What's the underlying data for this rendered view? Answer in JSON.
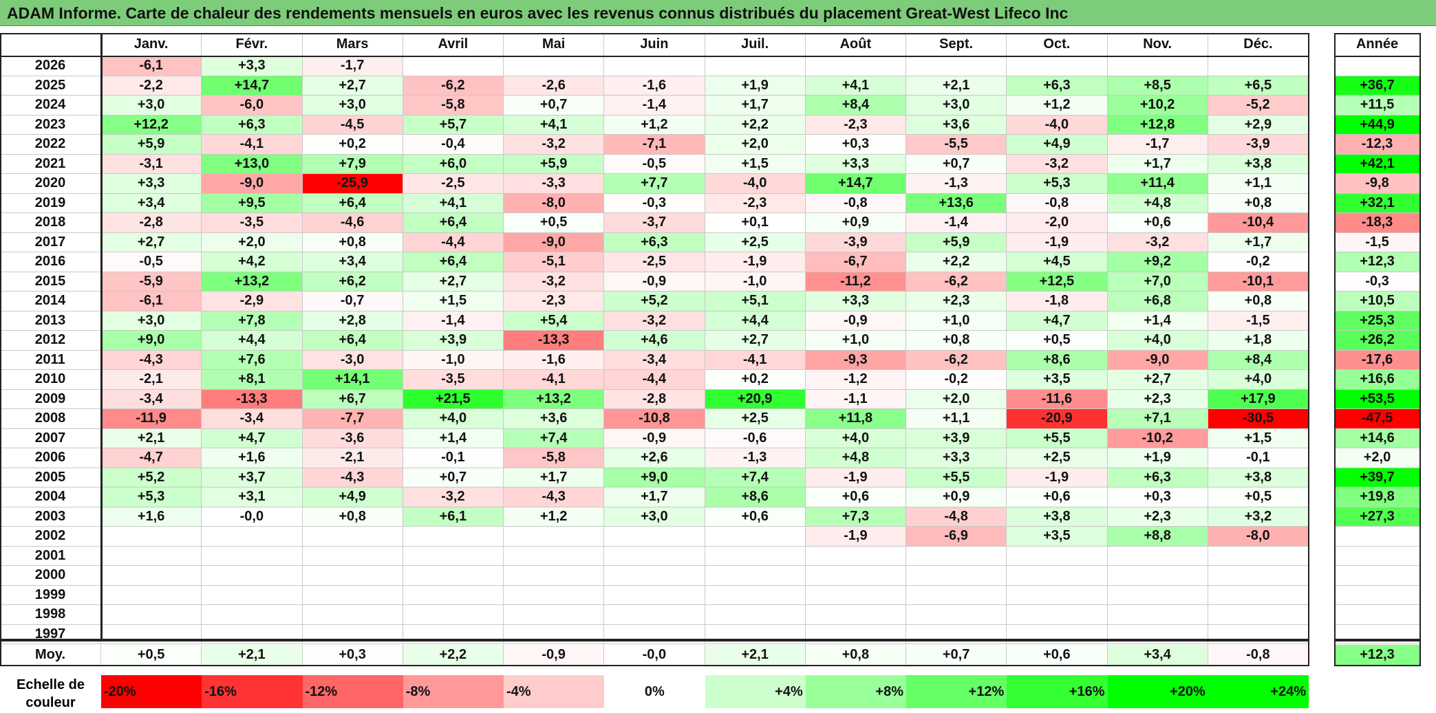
{
  "title": "ADAM Informe. Carte de chaleur des rendements mensuels en euros avec les revenus connus distribués du placement Great-West Lifeco Inc",
  "chart_data": {
    "type": "heatmap",
    "title": "ADAM Informe. Carte de chaleur des rendements mensuels en euros avec les revenus connus distribués du placement Great-West Lifeco Inc",
    "months": [
      "Janv.",
      "Févr.",
      "Mars",
      "Avril",
      "Mai",
      "Juin",
      "Juil.",
      "Août",
      "Sept.",
      "Oct.",
      "Nov.",
      "Déc."
    ],
    "year_header": "Année",
    "rows": [
      {
        "year": "2026",
        "values": [
          "-6,1",
          "+3,3",
          "-1,7",
          "",
          "",
          "",
          "",
          "",
          "",
          "",
          "",
          ""
        ],
        "annual": ""
      },
      {
        "year": "2025",
        "values": [
          "-2,2",
          "+14,7",
          "+2,7",
          "-6,2",
          "-2,6",
          "-1,6",
          "+1,9",
          "+4,1",
          "+2,1",
          "+6,3",
          "+8,5",
          "+6,5"
        ],
        "annual": "+36,7"
      },
      {
        "year": "2024",
        "values": [
          "+3,0",
          "-6,0",
          "+3,0",
          "-5,8",
          "+0,7",
          "-1,4",
          "+1,7",
          "+8,4",
          "+3,0",
          "+1,2",
          "+10,2",
          "-5,2"
        ],
        "annual": "+11,5"
      },
      {
        "year": "2023",
        "values": [
          "+12,2",
          "+6,3",
          "-4,5",
          "+5,7",
          "+4,1",
          "+1,2",
          "+2,2",
          "-2,3",
          "+3,6",
          "-4,0",
          "+12,8",
          "+2,9"
        ],
        "annual": "+44,9"
      },
      {
        "year": "2022",
        "values": [
          "+5,9",
          "-4,1",
          "+0,2",
          "-0,4",
          "-3,2",
          "-7,1",
          "+2,0",
          "+0,3",
          "-5,5",
          "+4,9",
          "-1,7",
          "-3,9"
        ],
        "annual": "-12,3"
      },
      {
        "year": "2021",
        "values": [
          "-3,1",
          "+13,0",
          "+7,9",
          "+6,0",
          "+5,9",
          "-0,5",
          "+1,5",
          "+3,3",
          "+0,7",
          "-3,2",
          "+1,7",
          "+3,8"
        ],
        "annual": "+42,1"
      },
      {
        "year": "2020",
        "values": [
          "+3,3",
          "-9,0",
          "-25,9",
          "-2,5",
          "-3,3",
          "+7,7",
          "-4,0",
          "+14,7",
          "-1,3",
          "+5,3",
          "+11,4",
          "+1,1"
        ],
        "annual": "-9,8"
      },
      {
        "year": "2019",
        "values": [
          "+3,4",
          "+9,5",
          "+6,4",
          "+4,1",
          "-8,0",
          "-0,3",
          "-2,3",
          "-0,8",
          "+13,6",
          "-0,8",
          "+4,8",
          "+0,8"
        ],
        "annual": "+32,1"
      },
      {
        "year": "2018",
        "values": [
          "-2,8",
          "-3,5",
          "-4,6",
          "+6,4",
          "+0,5",
          "-3,7",
          "+0,1",
          "+0,9",
          "-1,4",
          "-2,0",
          "+0,6",
          "-10,4"
        ],
        "annual": "-18,3"
      },
      {
        "year": "2017",
        "values": [
          "+2,7",
          "+2,0",
          "+0,8",
          "-4,4",
          "-9,0",
          "+6,3",
          "+2,5",
          "-3,9",
          "+5,9",
          "-1,9",
          "-3,2",
          "+1,7"
        ],
        "annual": "-1,5"
      },
      {
        "year": "2016",
        "values": [
          "-0,5",
          "+4,2",
          "+3,4",
          "+6,4",
          "-5,1",
          "-2,5",
          "-1,9",
          "-6,7",
          "+2,2",
          "+4,5",
          "+9,2",
          "-0,2"
        ],
        "annual": "+12,3"
      },
      {
        "year": "2015",
        "values": [
          "-5,9",
          "+13,2",
          "+6,2",
          "+2,7",
          "-3,2",
          "-0,9",
          "-1,0",
          "-11,2",
          "-6,2",
          "+12,5",
          "+7,0",
          "-10,1"
        ],
        "annual": "-0,3"
      },
      {
        "year": "2014",
        "values": [
          "-6,1",
          "-2,9",
          "-0,7",
          "+1,5",
          "-2,3",
          "+5,2",
          "+5,1",
          "+3,3",
          "+2,3",
          "-1,8",
          "+6,8",
          "+0,8"
        ],
        "annual": "+10,5"
      },
      {
        "year": "2013",
        "values": [
          "+3,0",
          "+7,8",
          "+2,8",
          "-1,4",
          "+5,4",
          "-3,2",
          "+4,4",
          "-0,9",
          "+1,0",
          "+4,7",
          "+1,4",
          "-1,5"
        ],
        "annual": "+25,3"
      },
      {
        "year": "2012",
        "values": [
          "+9,0",
          "+4,4",
          "+6,4",
          "+3,9",
          "-13,3",
          "+4,6",
          "+2,7",
          "+1,0",
          "+0,8",
          "+0,5",
          "+4,0",
          "+1,8"
        ],
        "annual": "+26,2"
      },
      {
        "year": "2011",
        "values": [
          "-4,3",
          "+7,6",
          "-3,0",
          "-1,0",
          "-1,6",
          "-3,4",
          "-4,1",
          "-9,3",
          "-6,2",
          "+8,6",
          "-9,0",
          "+8,4"
        ],
        "annual": "-17,6"
      },
      {
        "year": "2010",
        "values": [
          "-2,1",
          "+8,1",
          "+14,1",
          "-3,5",
          "-4,1",
          "-4,4",
          "+0,2",
          "-1,2",
          "-0,2",
          "+3,5",
          "+2,7",
          "+4,0"
        ],
        "annual": "+16,6"
      },
      {
        "year": "2009",
        "values": [
          "-3,4",
          "-13,3",
          "+6,7",
          "+21,5",
          "+13,2",
          "-2,8",
          "+20,9",
          "-1,1",
          "+2,0",
          "-11,6",
          "+2,3",
          "+17,9"
        ],
        "annual": "+53,5"
      },
      {
        "year": "2008",
        "values": [
          "-11,9",
          "-3,4",
          "-7,7",
          "+4,0",
          "+3,6",
          "-10,8",
          "+2,5",
          "+11,8",
          "+1,1",
          "-20,9",
          "+7,1",
          "-30,5"
        ],
        "annual": "-47,5"
      },
      {
        "year": "2007",
        "values": [
          "+2,1",
          "+4,7",
          "-3,6",
          "+1,4",
          "+7,4",
          "-0,9",
          "-0,6",
          "+4,0",
          "+3,9",
          "+5,5",
          "-10,2",
          "+1,5"
        ],
        "annual": "+14,6"
      },
      {
        "year": "2006",
        "values": [
          "-4,7",
          "+1,6",
          "-2,1",
          "-0,1",
          "-5,8",
          "+2,6",
          "-1,3",
          "+4,8",
          "+3,3",
          "+2,5",
          "+1,9",
          "-0,1"
        ],
        "annual": "+2,0"
      },
      {
        "year": "2005",
        "values": [
          "+5,2",
          "+3,7",
          "-4,3",
          "+0,7",
          "+1,7",
          "+9,0",
          "+7,4",
          "-1,9",
          "+5,5",
          "-1,9",
          "+6,3",
          "+3,8"
        ],
        "annual": "+39,7"
      },
      {
        "year": "2004",
        "values": [
          "+5,3",
          "+3,1",
          "+4,9",
          "-3,2",
          "-4,3",
          "+1,7",
          "+8,6",
          "+0,6",
          "+0,9",
          "+0,6",
          "+0,3",
          "+0,5"
        ],
        "annual": "+19,8"
      },
      {
        "year": "2003",
        "values": [
          "+1,6",
          "-0,0",
          "+0,8",
          "+6,1",
          "+1,2",
          "+3,0",
          "+0,6",
          "+7,3",
          "-4,8",
          "+3,8",
          "+2,3",
          "+3,2"
        ],
        "annual": "+27,3"
      },
      {
        "year": "2002",
        "values": [
          "",
          "",
          "",
          "",
          "",
          "",
          "",
          "-1,9",
          "-6,9",
          "+3,5",
          "+8,8",
          "-8,0"
        ],
        "annual": ""
      },
      {
        "year": "2001",
        "values": [
          "",
          "",
          "",
          "",
          "",
          "",
          "",
          "",
          "",
          "",
          "",
          ""
        ],
        "annual": ""
      },
      {
        "year": "2000",
        "values": [
          "",
          "",
          "",
          "",
          "",
          "",
          "",
          "",
          "",
          "",
          "",
          ""
        ],
        "annual": ""
      },
      {
        "year": "1999",
        "values": [
          "",
          "",
          "",
          "",
          "",
          "",
          "",
          "",
          "",
          "",
          "",
          ""
        ],
        "annual": ""
      },
      {
        "year": "1998",
        "values": [
          "",
          "",
          "",
          "",
          "",
          "",
          "",
          "",
          "",
          "",
          "",
          ""
        ],
        "annual": ""
      },
      {
        "year": "1997",
        "values": [
          "",
          "",
          "",
          "",
          "",
          "",
          "",
          "",
          "",
          "",
          "",
          ""
        ],
        "annual": ""
      }
    ],
    "average": {
      "label": "Moy.",
      "values": [
        "+0,5",
        "+2,1",
        "+0,3",
        "+2,2",
        "-0,9",
        "-0,0",
        "+2,1",
        "+0,8",
        "+0,7",
        "+0,6",
        "+3,4",
        "-0,8"
      ],
      "annual": "+12,3"
    },
    "color_scale": {
      "label": "Echelle de couleur",
      "stops": [
        "-20%",
        "-16%",
        "-12%",
        "-8%",
        "-4%",
        "0%",
        "+4%",
        "+8%",
        "+12%",
        "+16%",
        "+20%",
        "+24%"
      ],
      "stop_values": [
        -20,
        -16,
        -12,
        -8,
        -4,
        0,
        4,
        8,
        12,
        16,
        20,
        24
      ]
    },
    "colors": {
      "negative_max": "#ff0000",
      "positive_max": "#00ff00",
      "neutral": "#ffffff"
    }
  }
}
